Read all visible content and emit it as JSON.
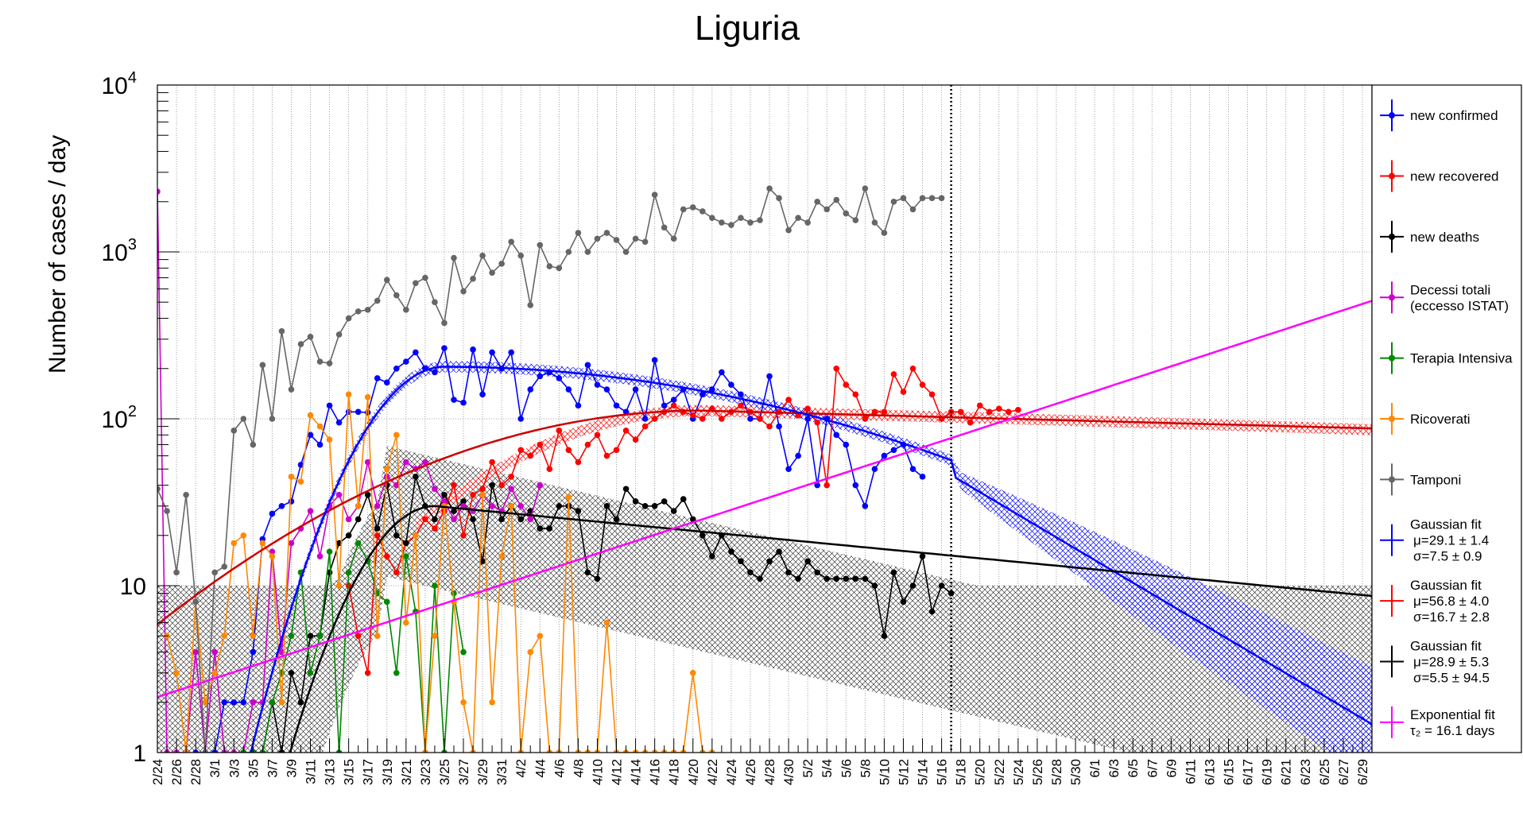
{
  "chart_data": {
    "type": "line",
    "title": "Liguria",
    "ylabel": "Number of cases / day",
    "xlabel": "",
    "yscale": "log",
    "ylim": [
      1,
      10000
    ],
    "xlim": [
      0,
      127
    ],
    "y_tick_labels": [
      "1",
      "10",
      "10",
      "10",
      "10"
    ],
    "y_tick_exponents": [
      "",
      "",
      "2",
      "3",
      "4"
    ],
    "x_tick_labels": [
      "2/24",
      "2/26",
      "2/28",
      "3/1",
      "3/3",
      "3/5",
      "3/7",
      "3/9",
      "3/11",
      "3/13",
      "3/15",
      "3/17",
      "3/19",
      "3/21",
      "3/23",
      "3/25",
      "3/27",
      "3/29",
      "3/31",
      "4/2",
      "4/4",
      "4/6",
      "4/8",
      "4/10",
      "4/12",
      "4/14",
      "4/16",
      "4/18",
      "4/20",
      "4/22",
      "4/24",
      "4/26",
      "4/28",
      "4/30",
      "5/2",
      "5/4",
      "5/6",
      "5/8",
      "5/10",
      "5/12",
      "5/14",
      "5/16",
      "5/18",
      "5/20",
      "5/22",
      "5/24",
      "5/26",
      "5/28",
      "5/30",
      "6/1",
      "6/3",
      "6/5",
      "6/7",
      "6/9",
      "6/11",
      "6/13",
      "6/15",
      "6/17",
      "6/19",
      "6/21",
      "6/23",
      "6/25",
      "6/27",
      "6/29"
    ],
    "x_tick_days": [
      0,
      2,
      4,
      6,
      8,
      10,
      12,
      14,
      16,
      18,
      20,
      22,
      24,
      26,
      28,
      30,
      32,
      34,
      36,
      38,
      40,
      42,
      44,
      46,
      48,
      50,
      52,
      54,
      56,
      58,
      60,
      62,
      64,
      66,
      68,
      70,
      72,
      74,
      76,
      78,
      80,
      82,
      84,
      86,
      88,
      90,
      92,
      94,
      96,
      98,
      100,
      102,
      104,
      106,
      108,
      110,
      112,
      114,
      116,
      118,
      120,
      122,
      124,
      126
    ],
    "vertical_marker_day": 83,
    "series": [
      {
        "name": "new confirmed",
        "color": "#0000ff",
        "start_day": 4,
        "values": [
          1,
          1,
          1,
          2,
          2,
          2,
          4,
          19,
          27,
          30,
          32,
          53,
          80,
          70,
          120,
          95,
          110,
          110,
          109,
          175,
          165,
          200,
          220,
          250,
          200,
          190,
          265,
          130,
          125,
          260,
          140,
          250,
          200,
          250,
          100,
          150,
          180,
          190,
          175,
          150,
          120,
          210,
          160,
          150,
          120,
          110,
          150,
          100,
          225,
          120,
          130,
          150,
          100,
          140,
          150,
          190,
          160,
          140,
          100,
          100,
          180,
          90,
          50,
          60,
          100,
          40,
          100,
          80,
          70,
          40,
          30,
          50,
          60,
          65,
          70,
          50,
          45
        ]
      },
      {
        "name": "new recovered",
        "color": "#ff0000",
        "start_day": 20,
        "values": [
          10,
          5,
          3,
          20,
          15,
          12,
          18,
          20,
          25,
          22,
          28,
          40,
          20,
          35,
          38,
          55,
          40,
          45,
          65,
          60,
          70,
          50,
          85,
          65,
          55,
          70,
          80,
          60,
          65,
          85,
          75,
          90,
          100,
          110,
          120,
          110,
          105,
          100,
          115,
          100,
          110,
          120,
          110,
          100,
          90,
          110,
          130,
          105,
          115,
          95,
          40,
          200,
          160,
          140,
          100,
          110,
          110,
          185,
          145,
          200,
          160,
          140,
          100,
          110,
          110,
          95,
          120,
          110,
          115,
          110,
          113
        ]
      },
      {
        "name": "new deaths",
        "color": "#000000",
        "start_day": 9,
        "values": [
          1,
          1,
          1,
          2,
          1,
          3,
          2,
          5,
          5,
          12,
          18,
          20,
          25,
          35,
          22,
          40,
          20,
          18,
          45,
          30,
          25,
          35,
          28,
          32,
          25,
          14,
          40,
          25,
          30,
          25,
          28,
          22,
          22,
          30,
          30,
          28,
          12,
          11,
          30,
          25,
          38,
          32,
          30,
          30,
          32,
          28,
          33,
          25,
          20,
          15,
          20,
          16,
          14,
          12,
          11,
          14,
          16,
          12,
          11,
          14,
          12,
          11,
          11,
          11,
          11,
          11,
          10,
          5,
          12,
          8,
          10,
          15,
          7,
          10,
          9
        ]
      },
      {
        "name": "Decessi totali (eccesso ISTAT)",
        "color": "#cc00cc",
        "start_day": 0,
        "values": [
          2300,
          1,
          1,
          1,
          4,
          1,
          4,
          1,
          1,
          1,
          2,
          2,
          16,
          4,
          18,
          22,
          28,
          15,
          30,
          35,
          25,
          30,
          55,
          30,
          45,
          40,
          55,
          50,
          55,
          38,
          32,
          25,
          30,
          28,
          35,
          30,
          28,
          38,
          30,
          25,
          40
        ]
      },
      {
        "name": "Terapia Intensiva",
        "color": "#008800",
        "start_day": 9,
        "values": [
          1,
          1,
          1,
          2,
          3,
          5,
          12,
          3,
          5,
          16,
          1,
          12,
          18,
          14,
          9,
          8,
          3,
          15,
          7,
          1,
          10,
          1,
          9,
          4
        ]
      },
      {
        "name": "Ricoverati",
        "color": "#ff8800",
        "start_day": 1,
        "values": [
          5,
          3,
          1,
          8,
          2,
          3,
          5,
          18,
          20,
          5,
          18,
          15,
          2,
          45,
          42,
          105,
          90,
          75,
          10,
          140,
          30,
          135,
          5,
          50,
          80,
          6,
          20,
          1,
          5,
          30,
          8,
          2,
          1,
          35,
          2,
          15,
          30,
          1,
          4,
          5,
          1,
          1,
          34,
          1,
          1,
          1,
          6,
          1,
          1,
          1,
          1,
          1,
          1,
          1,
          1,
          3,
          1,
          1
        ]
      },
      {
        "name": "Tamponi",
        "color": "#666666",
        "start_day": 0,
        "values": [
          38,
          28,
          12,
          35,
          8,
          1,
          12,
          13,
          85,
          100,
          70,
          210,
          100,
          335,
          150,
          280,
          310,
          220,
          215,
          320,
          400,
          440,
          450,
          510,
          680,
          550,
          450,
          650,
          700,
          500,
          375,
          920,
          580,
          690,
          950,
          750,
          850,
          1150,
          950,
          480,
          1100,
          820,
          800,
          1000,
          1300,
          1000,
          1200,
          1300,
          1180,
          1000,
          1200,
          1150,
          2200,
          1400,
          1200,
          1800,
          1850,
          1750,
          1600,
          1500,
          1450,
          1600,
          1500,
          1550,
          2400,
          2100,
          1350,
          1600,
          1500,
          2000,
          1800,
          2050,
          1700,
          1550,
          2400,
          1500,
          1300,
          2000,
          2100,
          1800,
          2100,
          2100,
          2100
        ]
      }
    ],
    "fits": [
      {
        "name": "Gaussian fit",
        "color": "#0000ff",
        "line1": "μ=29.1 ± 1.4",
        "line2": "σ=7.5 ± 0.9",
        "mu": 29.1,
        "sigma": 7.5,
        "amplitude": 205,
        "band_start_day": 83
      },
      {
        "name": "Gaussian fit",
        "color": "#ff0000",
        "line1": "μ=56.8 ± 4.0",
        "line2": "σ=16.7 ± 2.8",
        "mu": 56.8,
        "sigma": 16.7,
        "amplitude": 112,
        "band_start_day": 27
      },
      {
        "name": "Gaussian fit",
        "color": "#000000",
        "line1": "μ=28.9 ± 5.3",
        "line2": "σ=5.5 ± 94.5",
        "mu": 28.9,
        "sigma": 5.5,
        "amplitude": 30,
        "band_start_day": 0
      },
      {
        "name": "Exponential fit",
        "color": "#ff00ff",
        "line1": "τ₂ = 16.1 days",
        "line2": "",
        "doubling_days": 16.1,
        "value_at_day0": 2.15
      }
    ],
    "legend_position": "right"
  }
}
